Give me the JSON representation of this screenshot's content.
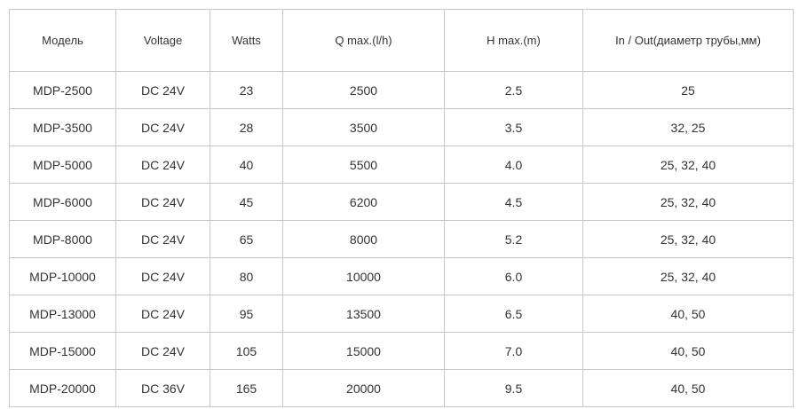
{
  "table": {
    "header": [
      "Модель",
      "Voltage",
      "Watts",
      "Q max.(l/h)",
      "H max.(m)",
      "In / Out(диаметр трубы,мм)"
    ],
    "rows": [
      [
        "MDP-2500",
        "DC 24V",
        "23",
        "2500",
        "2.5",
        "25"
      ],
      [
        "MDP-3500",
        "DC 24V",
        "28",
        "3500",
        "3.5",
        "32, 25"
      ],
      [
        "MDP-5000",
        "DC 24V",
        "40",
        "5500",
        "4.0",
        "25, 32, 40"
      ],
      [
        "MDP-6000",
        "DC 24V",
        "45",
        "6200",
        "4.5",
        "25, 32, 40"
      ],
      [
        "MDP-8000",
        "DC 24V",
        "65",
        "8000",
        "5.2",
        "25, 32, 40"
      ],
      [
        "MDP-10000",
        "DC 24V",
        "80",
        "10000",
        "6.0",
        "25, 32, 40"
      ],
      [
        "MDP-13000",
        "DC 24V",
        "95",
        "13500",
        "6.5",
        "40, 50"
      ],
      [
        "MDP-15000",
        "DC 24V",
        "105",
        "15000",
        "7.0",
        "40, 50"
      ],
      [
        "MDP-20000",
        "DC 36V",
        "165",
        "20000",
        "9.5",
        "40, 50"
      ]
    ]
  }
}
